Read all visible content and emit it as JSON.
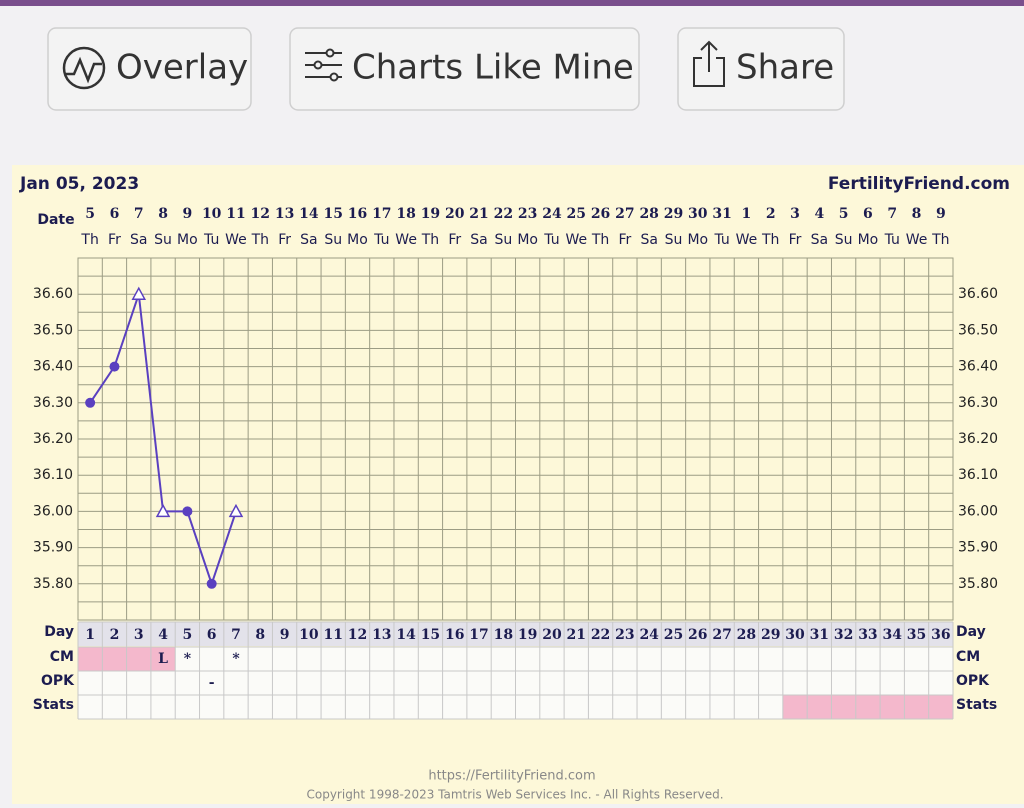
{
  "toolbar": {
    "buttons": [
      "Overlay",
      "Charts Like Mine",
      "Share"
    ]
  },
  "chart_data": {
    "type": "line",
    "date_heading": "Jan 05, 2023",
    "site": "FertilityFriend.com",
    "date_label": "Date",
    "categories": [
      5,
      6,
      7,
      8,
      9,
      10,
      11,
      12,
      13,
      14,
      15,
      16,
      17,
      18,
      19,
      20,
      21,
      22,
      23,
      24,
      25,
      26,
      27,
      28,
      29,
      30,
      31,
      1,
      2,
      3,
      4,
      5,
      6,
      7,
      8,
      9
    ],
    "weekdays": [
      "Th",
      "Fr",
      "Sa",
      "Su",
      "Mo",
      "Tu",
      "We",
      "Th",
      "Fr",
      "Sa",
      "Su",
      "Mo",
      "Tu",
      "We",
      "Th",
      "Fr",
      "Sa",
      "Su",
      "Mo",
      "Tu",
      "We",
      "Th",
      "Fr",
      "Sa",
      "Su",
      "Mo",
      "Tu",
      "We",
      "Th",
      "Fr",
      "Sa",
      "Su",
      "Mo",
      "Tu",
      "We",
      "Th"
    ],
    "ylim": [
      35.7,
      36.7
    ],
    "yticks": [
      {
        "value": 35.8,
        "label": "35.80"
      },
      {
        "value": 35.9,
        "label": "35.90"
      },
      {
        "value": 36.0,
        "label": "36.00"
      },
      {
        "value": 36.1,
        "label": "36.10"
      },
      {
        "value": 36.2,
        "label": "36.20"
      },
      {
        "value": 36.3,
        "label": "36.30"
      },
      {
        "value": 36.4,
        "label": "36.40"
      },
      {
        "value": 36.5,
        "label": "36.50"
      },
      {
        "value": 36.6,
        "label": "36.60"
      }
    ],
    "minor_yticks": [
      35.7,
      35.75,
      35.85,
      35.95,
      36.05,
      36.15,
      36.25,
      36.35,
      36.45,
      36.55,
      36.65,
      36.7
    ],
    "grid": true,
    "grid_color": "#9c9c84",
    "series": [
      {
        "color": "#5a40c0",
        "values": [
          36.3,
          36.4,
          36.6,
          36.0,
          36.0,
          35.8,
          36.0,
          null,
          null,
          null,
          null,
          null,
          null,
          null,
          null,
          null,
          null,
          null,
          null,
          null,
          null,
          null,
          null,
          null,
          null,
          null,
          null,
          null,
          null,
          null,
          null,
          null,
          null,
          null,
          null,
          null
        ],
        "markers": [
          "circle",
          "circle",
          "triangle",
          "triangle",
          "circle",
          "circle",
          "triangle",
          null,
          null,
          null,
          null,
          null,
          null,
          null,
          null,
          null,
          null,
          null,
          null,
          null,
          null,
          null,
          null,
          null,
          null,
          null,
          null,
          null,
          null,
          null,
          null,
          null,
          null,
          null,
          null,
          null
        ]
      }
    ],
    "rows": {
      "day_label": "Day",
      "cm_label": "CM",
      "opk_label": "OPK",
      "stats_label": "Stats",
      "cycle_days": [
        1,
        2,
        3,
        4,
        5,
        6,
        7,
        8,
        9,
        10,
        11,
        12,
        13,
        14,
        15,
        16,
        17,
        18,
        19,
        20,
        21,
        22,
        23,
        24,
        25,
        26,
        27,
        28,
        29,
        30,
        31,
        32,
        33,
        34,
        35,
        36
      ],
      "cm": [
        null,
        null,
        null,
        "L",
        "*",
        null,
        "*",
        null,
        null,
        null,
        null,
        null,
        null,
        null,
        null,
        null,
        null,
        null,
        null,
        null,
        null,
        null,
        null,
        null,
        null,
        null,
        null,
        null,
        null,
        null,
        null,
        null,
        null,
        null,
        null,
        null
      ],
      "opk": [
        null,
        null,
        null,
        null,
        null,
        "-",
        null,
        null,
        null,
        null,
        null,
        null,
        null,
        null,
        null,
        null,
        null,
        null,
        null,
        null,
        null,
        null,
        null,
        null,
        null,
        null,
        null,
        null,
        null,
        null,
        null,
        null,
        null,
        null,
        null,
        null
      ],
      "cm_highlight": [
        true,
        true,
        true,
        true,
        false,
        false,
        false,
        false,
        false,
        false,
        false,
        false,
        false,
        false,
        false,
        false,
        false,
        false,
        false,
        false,
        false,
        false,
        false,
        false,
        false,
        false,
        false,
        false,
        false,
        false,
        false,
        false,
        false,
        false,
        false,
        false
      ],
      "stats_highlight": [
        false,
        false,
        false,
        false,
        false,
        false,
        false,
        false,
        false,
        false,
        false,
        false,
        false,
        false,
        false,
        false,
        false,
        false,
        false,
        false,
        false,
        false,
        false,
        false,
        false,
        false,
        false,
        false,
        false,
        true,
        true,
        true,
        true,
        true,
        true,
        true
      ],
      "highlight_color": "#f4b8cc"
    }
  },
  "footer": {
    "url": "https://FertilityFriend.com",
    "copyright": "Copyright 1998-2023 Tamtris Web Services Inc. - All Rights Reserved."
  }
}
